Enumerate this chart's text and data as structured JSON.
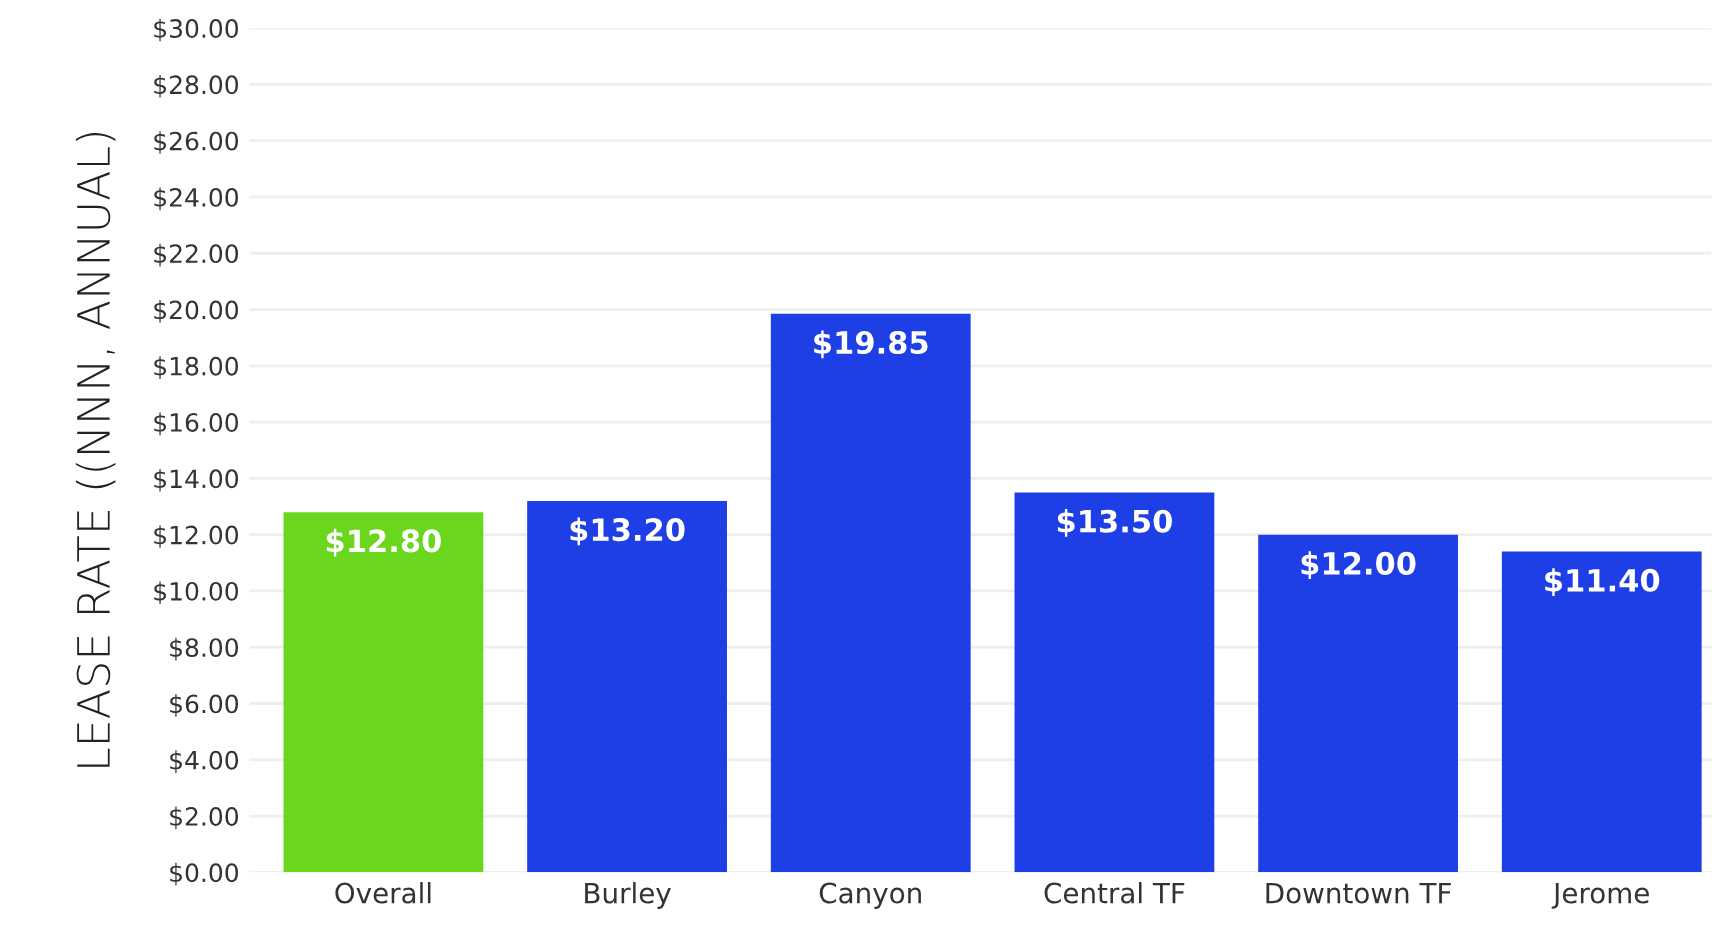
{
  "chart_data": {
    "type": "bar",
    "ylabel": "LEASE RATE ((NNN, ANNUAL)",
    "categories": [
      "Overall",
      "Burley",
      "Canyon",
      "Central TF",
      "Downtown TF",
      "Jerome"
    ],
    "values": [
      12.8,
      13.2,
      19.85,
      13.5,
      12.0,
      11.4
    ],
    "colors": [
      "#6bd61e",
      "#1f3fe6",
      "#1f3fe6",
      "#1f3fe6",
      "#1f3fe6",
      "#1f3fe6"
    ],
    "value_labels": [
      "$12.80",
      "$13.20",
      "$19.85",
      "$13.50",
      "$12.00",
      "$11.40"
    ],
    "ylim": [
      0,
      30
    ],
    "yticks": [
      {
        "value": 0,
        "label": "$0.00"
      },
      {
        "value": 2,
        "label": "$2.00"
      },
      {
        "value": 4,
        "label": "$4.00"
      },
      {
        "value": 6,
        "label": "$6.00"
      },
      {
        "value": 8,
        "label": "$8.00"
      },
      {
        "value": 10,
        "label": "$10.00"
      },
      {
        "value": 12,
        "label": "$12.00"
      },
      {
        "value": 14,
        "label": "$14.00"
      },
      {
        "value": 16,
        "label": "$16.00"
      },
      {
        "value": 18,
        "label": "$18.00"
      },
      {
        "value": 20,
        "label": "$20.00"
      },
      {
        "value": 22,
        "label": "$22.00"
      },
      {
        "value": 24,
        "label": "$24.00"
      },
      {
        "value": 26,
        "label": "$26.00"
      },
      {
        "value": 28,
        "label": "$28.00"
      },
      {
        "value": 30,
        "label": "$30.00"
      }
    ],
    "grid": "y"
  }
}
